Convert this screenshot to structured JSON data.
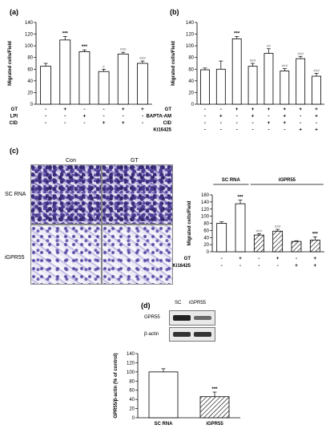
{
  "panels": {
    "a": "(a)",
    "b": "(b)",
    "c": "(c)",
    "d": "(d)"
  },
  "micrographs": {
    "col_con": "Con",
    "col_gt": "GT",
    "row_sc": "SC RNA",
    "row_igpr55": "iGPR55"
  },
  "western": {
    "lane_sc": "SC",
    "lane_igpr55": "iGPR55",
    "band_gpr55": "GPR55",
    "band_actin": "β-actin"
  },
  "chart_data": [
    {
      "id": "a",
      "type": "bar",
      "ylabel": "Migrated cells/Field",
      "ylim": [
        0,
        140
      ],
      "yticks": [
        0,
        20,
        40,
        60,
        80,
        100,
        120,
        140
      ],
      "values": [
        65,
        110,
        90,
        56,
        86,
        70
      ],
      "errors": [
        5,
        6,
        3,
        4,
        3,
        4
      ],
      "annotations": [
        "",
        "***",
        "***",
        "#",
        "###",
        "###"
      ],
      "condition_rows": [
        {
          "label": "GT",
          "signs": [
            "-",
            "+",
            "-",
            "-",
            "+",
            "+"
          ]
        },
        {
          "label": "LPI",
          "signs": [
            "-",
            "-",
            "+",
            "-",
            "-",
            "-"
          ]
        },
        {
          "label": "CID",
          "signs": [
            "-",
            "-",
            "-",
            "+",
            "+",
            "-"
          ]
        }
      ]
    },
    {
      "id": "b",
      "type": "bar",
      "ylabel": "Migrated cells/Field",
      "ylim": [
        0,
        140
      ],
      "yticks": [
        0,
        20,
        40,
        60,
        80,
        100,
        120,
        140
      ],
      "values": [
        59,
        60,
        112,
        65,
        87,
        57,
        78,
        48
      ],
      "errors": [
        3,
        14,
        4,
        5,
        8,
        4,
        4,
        5
      ],
      "annotations": [
        "",
        "",
        "***",
        "###",
        "##",
        "###",
        "###",
        "###"
      ],
      "condition_rows": [
        {
          "label": "GT",
          "signs": [
            "-",
            "-",
            "+",
            "+",
            "+",
            "+",
            "+",
            "+"
          ]
        },
        {
          "label": "BAPTA-AM",
          "signs": [
            "-",
            "+",
            "-",
            "+",
            "-",
            "+",
            "-",
            "+"
          ]
        },
        {
          "label": "CID",
          "signs": [
            "-",
            "-",
            "-",
            "-",
            "+",
            "+",
            "-",
            "-"
          ]
        },
        {
          "label": "Ki16425",
          "signs": [
            "-",
            "-",
            "-",
            "-",
            "-",
            "-",
            "+",
            "+"
          ]
        }
      ]
    },
    {
      "id": "c",
      "type": "bar",
      "ylabel": "Migrated cells/Field",
      "ylim": [
        0,
        160
      ],
      "yticks": [
        0,
        20,
        40,
        60,
        80,
        100,
        120,
        140,
        160
      ],
      "values": [
        80,
        135,
        47,
        58,
        29,
        33
      ],
      "errors": [
        4,
        10,
        4,
        5,
        2,
        9
      ],
      "annotations": [
        "",
        "***",
        "###",
        "###",
        "",
        "***"
      ],
      "hatched": [
        false,
        false,
        true,
        true,
        true,
        true
      ],
      "groups": [
        {
          "label": "SC RNA",
          "from": 0,
          "to": 1
        },
        {
          "label": "iGPR55",
          "from": 2,
          "to": 5
        }
      ],
      "condition_rows": [
        {
          "label": "GT",
          "signs": [
            "-",
            "+",
            "-",
            "+",
            "-",
            "+"
          ]
        },
        {
          "label": "Ki16425",
          "signs": [
            "-",
            "-",
            "-",
            "-",
            "+",
            "+"
          ]
        }
      ]
    },
    {
      "id": "d",
      "type": "bar",
      "ylabel": "GPR55/β-actin (% of control)",
      "ylim": [
        0,
        140
      ],
      "yticks": [
        0,
        20,
        40,
        60,
        80,
        100,
        120,
        140
      ],
      "categories": [
        "SC RNA",
        "iGPR55"
      ],
      "values": [
        100,
        46
      ],
      "errors": [
        7,
        10
      ],
      "annotations": [
        "",
        "***"
      ],
      "hatched": [
        false,
        true
      ]
    }
  ]
}
